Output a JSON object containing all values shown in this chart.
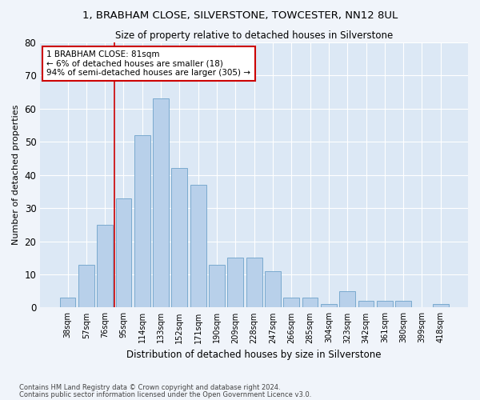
{
  "title1": "1, BRABHAM CLOSE, SILVERSTONE, TOWCESTER, NN12 8UL",
  "title2": "Size of property relative to detached houses in Silverstone",
  "xlabel": "Distribution of detached houses by size in Silverstone",
  "ylabel": "Number of detached properties",
  "categories": [
    "38sqm",
    "57sqm",
    "76sqm",
    "95sqm",
    "114sqm",
    "133sqm",
    "152sqm",
    "171sqm",
    "190sqm",
    "209sqm",
    "228sqm",
    "247sqm",
    "266sqm",
    "285sqm",
    "304sqm",
    "323sqm",
    "342sqm",
    "361sqm",
    "380sqm",
    "399sqm",
    "418sqm"
  ],
  "values": [
    3,
    13,
    25,
    33,
    52,
    63,
    42,
    37,
    13,
    15,
    15,
    11,
    3,
    3,
    1,
    5,
    2,
    2,
    2,
    0,
    1
  ],
  "bar_color": "#b8d0ea",
  "bar_edge_color": "#7aaacf",
  "vline_x": 2.5,
  "vline_color": "#cc0000",
  "annotation_text": "1 BRABHAM CLOSE: 81sqm\n← 6% of detached houses are smaller (18)\n94% of semi-detached houses are larger (305) →",
  "annotation_box_color": "#cc0000",
  "ylim": [
    0,
    80
  ],
  "yticks": [
    0,
    10,
    20,
    30,
    40,
    50,
    60,
    70,
    80
  ],
  "footer1": "Contains HM Land Registry data © Crown copyright and database right 2024.",
  "footer2": "Contains public sector information licensed under the Open Government Licence v3.0.",
  "fig_bg_color": "#f0f4fa",
  "plot_bg_color": "#dce8f5"
}
